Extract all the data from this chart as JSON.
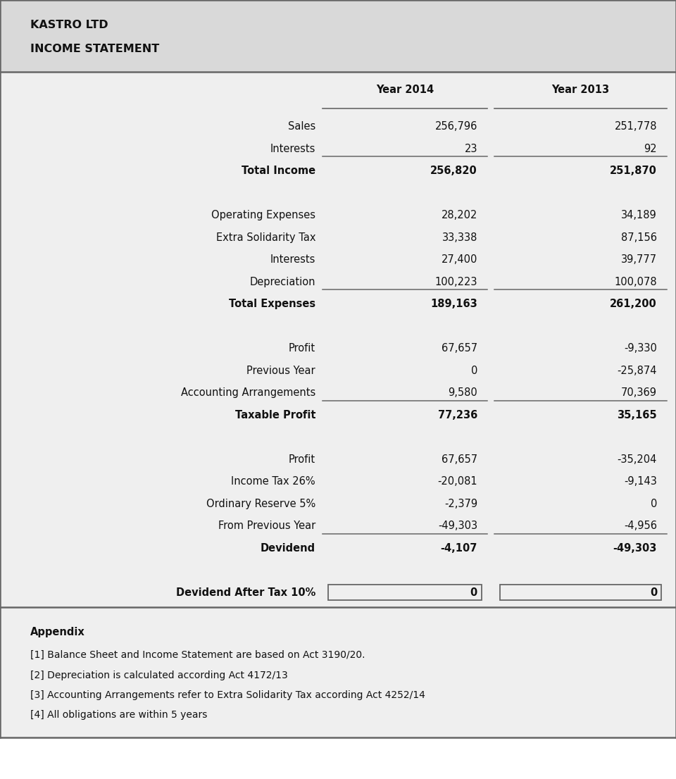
{
  "title_line1": "KASTRO LTD",
  "title_line2": "INCOME STATEMENT",
  "col_headers": [
    "Year 2014",
    "Year 2013"
  ],
  "rows": [
    {
      "label": "Sales",
      "val2014": "256,796",
      "val2013": "251,778",
      "bold": false,
      "line_below": false,
      "boxed": false
    },
    {
      "label": "Interests",
      "val2014": "23",
      "val2013": "92",
      "bold": false,
      "line_below": true,
      "boxed": false
    },
    {
      "label": "Total Income",
      "val2014": "256,820",
      "val2013": "251,870",
      "bold": true,
      "line_below": false,
      "boxed": false
    },
    {
      "label": "",
      "val2014": "",
      "val2013": "",
      "bold": false,
      "line_below": false,
      "boxed": false
    },
    {
      "label": "Operating Expenses",
      "val2014": "28,202",
      "val2013": "34,189",
      "bold": false,
      "line_below": false,
      "boxed": false
    },
    {
      "label": "Extra Solidarity Tax",
      "val2014": "33,338",
      "val2013": "87,156",
      "bold": false,
      "line_below": false,
      "boxed": false
    },
    {
      "label": "Interests",
      "val2014": "27,400",
      "val2013": "39,777",
      "bold": false,
      "line_below": false,
      "boxed": false
    },
    {
      "label": "Depreciation",
      "val2014": "100,223",
      "val2013": "100,078",
      "bold": false,
      "line_below": true,
      "boxed": false
    },
    {
      "label": "Total Expenses",
      "val2014": "189,163",
      "val2013": "261,200",
      "bold": true,
      "line_below": false,
      "boxed": false
    },
    {
      "label": "",
      "val2014": "",
      "val2013": "",
      "bold": false,
      "line_below": false,
      "boxed": false
    },
    {
      "label": "Profit",
      "val2014": "67,657",
      "val2013": "-9,330",
      "bold": false,
      "line_below": false,
      "boxed": false
    },
    {
      "label": "Previous Year",
      "val2014": "0",
      "val2013": "-25,874",
      "bold": false,
      "line_below": false,
      "boxed": false
    },
    {
      "label": "Accounting Arrangements",
      "val2014": "9,580",
      "val2013": "70,369",
      "bold": false,
      "line_below": true,
      "boxed": false
    },
    {
      "label": "Taxable Profit",
      "val2014": "77,236",
      "val2013": "35,165",
      "bold": true,
      "line_below": false,
      "boxed": false
    },
    {
      "label": "",
      "val2014": "",
      "val2013": "",
      "bold": false,
      "line_below": false,
      "boxed": false
    },
    {
      "label": "Profit",
      "val2014": "67,657",
      "val2013": "-35,204",
      "bold": false,
      "line_below": false,
      "boxed": false
    },
    {
      "label": "Income Tax 26%",
      "val2014": "-20,081",
      "val2013": "-9,143",
      "bold": false,
      "line_below": false,
      "boxed": false
    },
    {
      "label": "Ordinary Reserve 5%",
      "val2014": "-2,379",
      "val2013": "0",
      "bold": false,
      "line_below": false,
      "boxed": false
    },
    {
      "label": "From Previous Year",
      "val2014": "-49,303",
      "val2013": "-4,956",
      "bold": false,
      "line_below": true,
      "boxed": false
    },
    {
      "label": "Devidend",
      "val2014": "-4,107",
      "val2013": "-49,303",
      "bold": true,
      "line_below": false,
      "boxed": false
    },
    {
      "label": "",
      "val2014": "",
      "val2013": "",
      "bold": false,
      "line_below": false,
      "boxed": false
    },
    {
      "label": "Devidend After Tax 10%",
      "val2014": "0",
      "val2013": "0",
      "bold": true,
      "line_below": false,
      "boxed": true
    }
  ],
  "appendix_title": "Appendix",
  "appendix_lines": [
    "[1] Balance Sheet and Income Statement are based on Act 3190/20.",
    "[2] Depreciation is calculated according Act 4172/13",
    "[3] Accounting Arrangements refer to Extra Solidarity Tax according Act 4252/14",
    "[4] All obligations are within 5 years"
  ],
  "header_bg": "#d9d9d9",
  "body_bg": "#efefef",
  "border_color": "#666666",
  "text_color": "#111111",
  "line_color": "#666666",
  "fig_w": 9.6,
  "fig_h": 11.06,
  "dpi": 100
}
